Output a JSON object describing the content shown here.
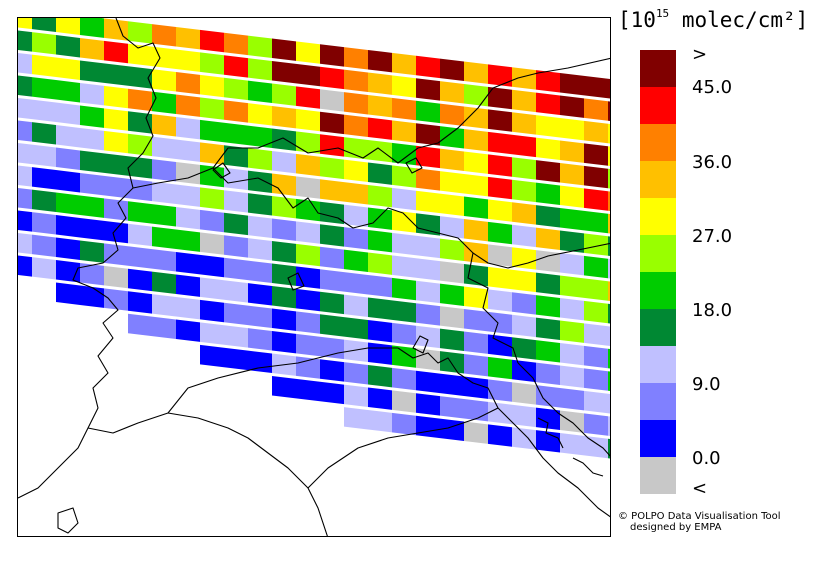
{
  "legend": {
    "unit_prefix": "[10",
    "unit_exp": "15",
    "unit_suffix": " molec/cm²]",
    "overflow_label": ">",
    "underflow_label": "<",
    "tick_labels": [
      "45.0",
      "36.0",
      "27.0",
      "18.0",
      "9.0",
      "0.0"
    ],
    "colors": [
      "#800000",
      "#ff0000",
      "#ff8000",
      "#ffc000",
      "#ffff00",
      "#99ff00",
      "#00cc00",
      "#008833",
      "#c0c0ff",
      "#8080ff",
      "#0000ff",
      "#c8c8c8"
    ]
  },
  "credits": {
    "line1": "© POLPO Data Visualisation Tool",
    "line2": "designed by EMPA"
  }
}
